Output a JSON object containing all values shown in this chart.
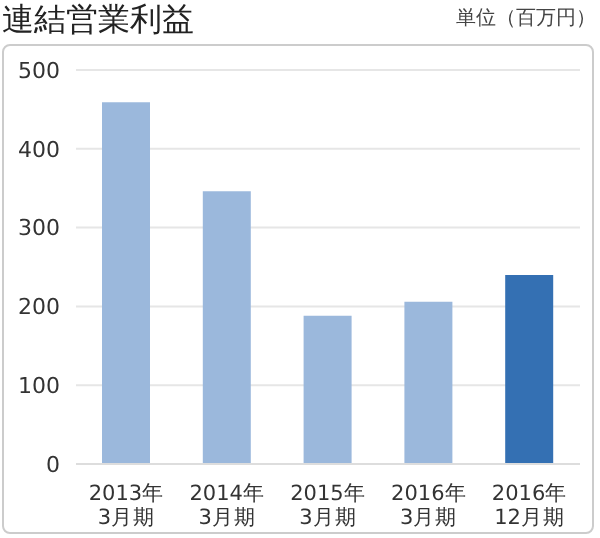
{
  "chart_data": {
    "type": "bar",
    "title": "連結営業利益",
    "ylabel": "単位（百万円）",
    "categories": [
      "2013年\n3月期",
      "2014年\n3月期",
      "2015年\n3月期",
      "2016年\n3月期",
      "2016年\n12月期"
    ],
    "values": [
      459,
      346,
      188,
      206,
      240
    ],
    "colors": [
      "#9bb8dc",
      "#9bb8dc",
      "#9bb8dc",
      "#9bb8dc",
      "#3470b3"
    ],
    "ylim": [
      0,
      500
    ],
    "yticks": [
      0,
      100,
      200,
      300,
      400,
      500
    ],
    "grid": "y"
  }
}
